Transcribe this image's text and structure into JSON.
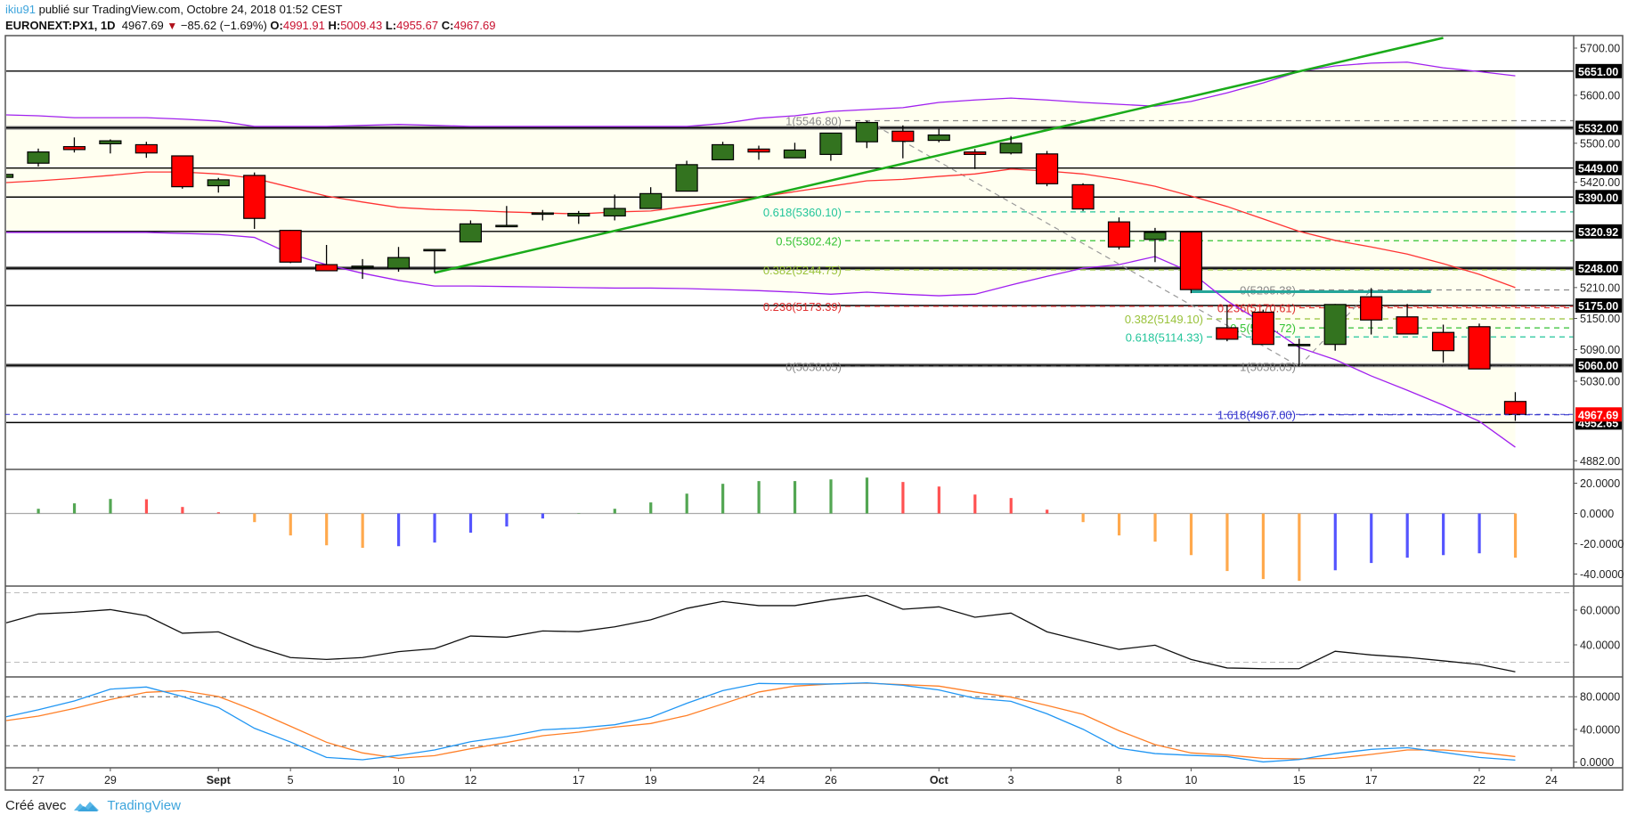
{
  "header": {
    "author": "ikiu91",
    "published": "publié sur TradingView.com, Octobre 24, 2018 01:52 CEST",
    "symbol": "EURONEXT:PX1, 1D",
    "last": "4967.69",
    "direction_icon": "triangle-down",
    "change": "−85.62 (−1.69%)",
    "o_label": "O:",
    "o": "4991.91",
    "h_label": "H:",
    "h": "5009.43",
    "l_label": "L:",
    "l": "4955.67",
    "c_label": "C:",
    "c": "4967.69"
  },
  "footer": {
    "created": "Créé avec",
    "brand": "TradingView",
    "logo_icon": "tradingview-logo"
  },
  "chart_data": {
    "type": "candlestick",
    "price_scale": "log",
    "colors": {
      "up": "#33731f",
      "down": "#ff0000",
      "bb_upper_lower": "#a020f0",
      "bb_basis": "#ff3333",
      "bb_fill": "#fffff0",
      "trendline": "#1aab1a",
      "macd_up_rising": "#53a653",
      "macd_up_falling": "#ff5252",
      "macd_down_falling": "#ffa94d",
      "macd_down_rising": "#5555ff",
      "stoch_k": "#2196f3",
      "stoch_d": "#ff7f27"
    },
    "candles": [
      {
        "d": "Aug 24",
        "o": 5430,
        "h": 5437,
        "l": 5428,
        "c": 5436
      },
      {
        "d": "Aug 27",
        "o": 5459,
        "h": 5489,
        "l": 5452,
        "c": 5482
      },
      {
        "d": "Aug 28",
        "o": 5493,
        "h": 5512,
        "l": 5481,
        "c": 5487
      },
      {
        "d": "Aug 29",
        "o": 5499,
        "h": 5508,
        "l": 5479,
        "c": 5505
      },
      {
        "d": "Aug 30",
        "o": 5497,
        "h": 5503,
        "l": 5470,
        "c": 5480
      },
      {
        "d": "Aug 31",
        "o": 5474,
        "h": 5474,
        "l": 5407,
        "c": 5411
      },
      {
        "d": "Sep 3",
        "o": 5413,
        "h": 5429,
        "l": 5399,
        "c": 5425
      },
      {
        "d": "Sep 4",
        "o": 5434,
        "h": 5440,
        "l": 5326,
        "c": 5347
      },
      {
        "d": "Sep 5",
        "o": 5323,
        "h": 5324,
        "l": 5258,
        "c": 5260
      },
      {
        "d": "Sep 6",
        "o": 5255,
        "h": 5294,
        "l": 5243,
        "c": 5243
      },
      {
        "d": "Sep 7",
        "o": 5250,
        "h": 5266,
        "l": 5227,
        "c": 5252
      },
      {
        "d": "Sep 10",
        "o": 5248,
        "h": 5290,
        "l": 5241,
        "c": 5269
      },
      {
        "d": "Sep 11",
        "o": 5284,
        "h": 5285,
        "l": 5239,
        "c": 5285
      },
      {
        "d": "Sep 12",
        "o": 5300,
        "h": 5343,
        "l": 5300,
        "c": 5336
      },
      {
        "d": "Sep 13",
        "o": 5332,
        "h": 5372,
        "l": 5332,
        "c": 5333
      },
      {
        "d": "Sep 14",
        "o": 5357,
        "h": 5364,
        "l": 5343,
        "c": 5358
      },
      {
        "d": "Sep 17",
        "o": 5352,
        "h": 5362,
        "l": 5336,
        "c": 5357
      },
      {
        "d": "Sep 18",
        "o": 5352,
        "h": 5395,
        "l": 5343,
        "c": 5367
      },
      {
        "d": "Sep 19",
        "o": 5367,
        "h": 5410,
        "l": 5367,
        "c": 5397
      },
      {
        "d": "Sep 20",
        "o": 5402,
        "h": 5464,
        "l": 5402,
        "c": 5456
      },
      {
        "d": "Sep 21",
        "o": 5466,
        "h": 5503,
        "l": 5466,
        "c": 5497
      },
      {
        "d": "Sep 24",
        "o": 5488,
        "h": 5495,
        "l": 5466,
        "c": 5482
      },
      {
        "d": "Sep 25",
        "o": 5470,
        "h": 5501,
        "l": 5470,
        "c": 5486
      },
      {
        "d": "Sep 26",
        "o": 5477,
        "h": 5521,
        "l": 5464,
        "c": 5521
      },
      {
        "d": "Sep 27",
        "o": 5503,
        "h": 5546.8,
        "l": 5490,
        "c": 5543
      },
      {
        "d": "Sep 28",
        "o": 5525,
        "h": 5537,
        "l": 5469,
        "c": 5504
      },
      {
        "d": "Oct 1",
        "o": 5506,
        "h": 5530,
        "l": 5502,
        "c": 5517
      },
      {
        "d": "Oct 2",
        "o": 5482,
        "h": 5488,
        "l": 5447,
        "c": 5477
      },
      {
        "d": "Oct 3",
        "o": 5480,
        "h": 5515,
        "l": 5477,
        "c": 5500
      },
      {
        "d": "Oct 4",
        "o": 5478,
        "h": 5484,
        "l": 5412,
        "c": 5417
      },
      {
        "d": "Oct 5",
        "o": 5415,
        "h": 5418,
        "l": 5362,
        "c": 5366
      },
      {
        "d": "Oct 8",
        "o": 5340,
        "h": 5349,
        "l": 5285,
        "c": 5290
      },
      {
        "d": "Oct 9",
        "o": 5305,
        "h": 5328,
        "l": 5260,
        "c": 5319
      },
      {
        "d": "Oct 10",
        "o": 5320,
        "h": 5320,
        "l": 5199,
        "c": 5206
      },
      {
        "d": "Oct 11",
        "o": 5132,
        "h": 5175,
        "l": 5106,
        "c": 5110
      },
      {
        "d": "Oct 12",
        "o": 5162,
        "h": 5167,
        "l": 5100,
        "c": 5100
      },
      {
        "d": "Oct 15",
        "o": 5099,
        "h": 5111,
        "l": 5058.05,
        "c": 5100
      },
      {
        "d": "Oct 16",
        "o": 5100,
        "h": 5178,
        "l": 5088,
        "c": 5177
      },
      {
        "d": "Oct 17",
        "o": 5192,
        "h": 5209,
        "l": 5119,
        "c": 5147
      },
      {
        "d": "Oct 18",
        "o": 5153,
        "h": 5178,
        "l": 5120,
        "c": 5120
      },
      {
        "d": "Oct 19",
        "o": 5123,
        "h": 5138,
        "l": 5065,
        "c": 5088
      },
      {
        "d": "Oct 22",
        "o": 5134,
        "h": 5140,
        "l": 5053.31,
        "c": 5053.31
      },
      {
        "d": "Oct 23",
        "o": 4991.91,
        "h": 5009.43,
        "l": 4955.67,
        "c": 4967.69
      }
    ],
    "bollinger": {
      "upper": [
        5559,
        5557,
        5553,
        5553,
        5553,
        5550,
        5546,
        5535,
        5535,
        5535,
        5537,
        5539,
        5537,
        5535,
        5535,
        5535,
        5535,
        5535,
        5535,
        5535,
        5541,
        5552,
        5557,
        5566,
        5570,
        5574,
        5585,
        5590,
        5594,
        5590,
        5585,
        5581,
        5577,
        5587,
        5605,
        5626,
        5650,
        5662,
        5668,
        5670,
        5658,
        5650,
        5641
      ],
      "basis": [
        5419,
        5423,
        5428,
        5434,
        5441,
        5441,
        5437,
        5428,
        5410,
        5392,
        5380,
        5369,
        5365,
        5363,
        5360,
        5358,
        5356,
        5360,
        5362,
        5371,
        5380,
        5390,
        5401,
        5412,
        5423,
        5426,
        5432,
        5437,
        5447,
        5443,
        5437,
        5426,
        5412,
        5392,
        5371,
        5346,
        5321,
        5303,
        5290,
        5276,
        5257,
        5236,
        5210
      ],
      "lower": [
        5319,
        5319,
        5319,
        5319,
        5319,
        5317,
        5315,
        5309,
        5276,
        5255,
        5238,
        5224,
        5213,
        5213,
        5212,
        5211,
        5210,
        5209,
        5209,
        5208,
        5206,
        5204,
        5201,
        5197,
        5201,
        5197,
        5194,
        5197,
        5215,
        5232,
        5248,
        5255,
        5271,
        5240,
        5184,
        5141,
        5094,
        5071,
        5040,
        5013,
        4985,
        4955,
        4907
      ]
    },
    "trendline": {
      "from": {
        "d": "Sep 11",
        "price": 5239
      },
      "to": {
        "d": "Oct 19",
        "price": 5722
      }
    },
    "horizontal_levels": [
      {
        "price": 5651,
        "label": "5651.00",
        "thick": false
      },
      {
        "price": 5532,
        "label": "5532.00",
        "thick": true
      },
      {
        "price": 5449,
        "label": "5449.00",
        "thick": false
      },
      {
        "price": 5390,
        "label": "5390.00",
        "thick": false
      },
      {
        "price": 5320.92,
        "label": "5320.92",
        "thick": false
      },
      {
        "price": 5248,
        "label": "5248.00",
        "thick": true
      },
      {
        "price": 5175,
        "label": "5175.00",
        "thick": false
      },
      {
        "price": 5060,
        "label": "5060.00",
        "thick": true
      },
      {
        "price": 4952.65,
        "label": "4952.65",
        "thick": false
      }
    ],
    "last_price_badge": {
      "price": 4967.69,
      "label": "4967.69",
      "color": "#ff0000"
    },
    "price_ticks": [
      {
        "p": 5700,
        "label": "5700.00"
      },
      {
        "p": 5600,
        "label": "5600.00"
      },
      {
        "p": 5500,
        "label": "5500.00"
      },
      {
        "p": 5420,
        "label": "5420.00"
      },
      {
        "p": 5210,
        "label": "5210.00"
      },
      {
        "p": 5150,
        "label": "5150.00"
      },
      {
        "p": 5090,
        "label": "5090.00"
      },
      {
        "p": 5030,
        "label": "5030.00"
      },
      {
        "p": 4882,
        "label": "4882.00"
      }
    ],
    "fib_1": {
      "from": {
        "d": "Sep 27",
        "price": 5546.8
      },
      "to": {
        "d": "Oct 15",
        "price": 5058.05
      },
      "levels": [
        {
          "label": "1(5546.80)",
          "price": 5546.8,
          "color": "#888888"
        },
        {
          "label": "0.618(5360.10)",
          "price": 5360.1,
          "color": "#22c59a"
        },
        {
          "label": "0.5(5302.42)",
          "price": 5302.42,
          "color": "#33c233"
        },
        {
          "label": "0.382(5244.75)",
          "price": 5244.75,
          "color": "#99c23a"
        },
        {
          "label": "0.236(5173.39)",
          "price": 5173.39,
          "color": "#e03030"
        },
        {
          "label": "0(5058.05)",
          "price": 5058.05,
          "color": "#888888"
        }
      ]
    },
    "fib_2": {
      "from": {
        "d": "Oct 15",
        "price": 5058.05
      },
      "to": {
        "d": "Oct 17",
        "price": 5205.38
      },
      "levels": [
        {
          "label": "0(5205.38)",
          "price": 5205.38,
          "color": "#888888"
        },
        {
          "label": "0.236(5170.61)",
          "price": 5170.61,
          "color": "#e03030"
        },
        {
          "label": "0.382(5149.10)",
          "price": 5149.1,
          "color": "#99c23a"
        },
        {
          "label": "0.5(5131.72)",
          "price": 5131.72,
          "color": "#33c233"
        },
        {
          "label": "0.618(5114.33)",
          "price": 5114.33,
          "color": "#22c59a"
        },
        {
          "label": "1(5058.05)",
          "price": 5058.05,
          "color": "#888888"
        },
        {
          "label": "1.618(4967.00)",
          "price": 4967.0,
          "color": "#3333cc"
        }
      ],
      "highlight_line": {
        "price": 5205.38,
        "from": "Oct 10",
        "to": "Oct 17",
        "color": "#26a69a"
      }
    },
    "macd_histogram": {
      "ticks": [
        {
          "v": 20,
          "label": "20.0000"
        },
        {
          "v": 0,
          "label": "0.0000"
        },
        {
          "v": -20,
          "label": "-20.0000"
        },
        {
          "v": -40,
          "label": "-40.0000"
        }
      ],
      "values": [
        null,
        3.1,
        6.7,
        9.6,
        9.4,
        4.3,
        0.8,
        -5.7,
        -14.5,
        -21,
        -22.7,
        -21.6,
        -19.2,
        -12.7,
        -8.6,
        -3.3,
        0.3,
        3.1,
        7.3,
        13.1,
        19.6,
        21.4,
        21.4,
        22.5,
        23.7,
        20.8,
        17.8,
        12.5,
        10.2,
        2.5,
        -5.7,
        -14.5,
        -18.6,
        -27.5,
        -38,
        -43.3,
        -44.5,
        -37.5,
        -32.7,
        -29.2,
        -27.5,
        -26.3,
        -29.2
      ]
    },
    "rsi": {
      "ticks": [
        {
          "v": 60,
          "label": "60.0000"
        },
        {
          "v": 40,
          "label": "40.0000"
        }
      ],
      "bands": [
        70,
        30
      ],
      "values": [
        52.7,
        57.8,
        58.8,
        60.3,
        56.8,
        46.7,
        47.5,
        39.1,
        32.7,
        31.6,
        32.7,
        36.1,
        37.8,
        45.1,
        44.4,
        48.0,
        47.6,
        50.4,
        54.4,
        61.0,
        65.0,
        62.6,
        62.6,
        66.0,
        68.5,
        60.5,
        61.9,
        55.9,
        58.3,
        47.5,
        42.4,
        37.4,
        39.8,
        31.6,
        26.7,
        26.3,
        26.3,
        36.3,
        34.2,
        32.8,
        30.8,
        28.7,
        24.5
      ]
    },
    "stochastic": {
      "ticks": [
        {
          "v": 80,
          "label": "80.0000"
        },
        {
          "v": 40,
          "label": "40.0000"
        },
        {
          "v": 0,
          "label": "0.0000"
        }
      ],
      "bands": [
        80,
        20
      ],
      "k": [
        55.5,
        64,
        74.8,
        89.3,
        91.9,
        80.3,
        66.8,
        41.4,
        24.6,
        5.7,
        2.8,
        8.2,
        14.8,
        24.9,
        31.2,
        39.5,
        41.7,
        45.7,
        54.8,
        71.9,
        87.5,
        96.3,
        95.6,
        95.6,
        97,
        94,
        88.3,
        78.1,
        74.4,
        59.1,
        40.2,
        16.9,
        10.4,
        8.2,
        6.7,
        0.2,
        3.1,
        10.4,
        15.5,
        17.7,
        11.9,
        5.7,
        2.4
      ],
      "d": [
        50.8,
        56.3,
        65.7,
        76.6,
        85.4,
        87.5,
        80.3,
        63.2,
        43.9,
        24.3,
        11.2,
        4.6,
        7.9,
        16.3,
        23.9,
        32.3,
        36.6,
        42.8,
        47.2,
        57,
        71.2,
        85.8,
        93,
        95.6,
        96.6,
        94.8,
        93,
        85.8,
        79.5,
        69.4,
        58.4,
        38.4,
        21.4,
        11.2,
        8.6,
        4.6,
        3.9,
        4.6,
        9.4,
        14.8,
        14.8,
        11.9,
        6.7
      ]
    },
    "x_ticks": [
      {
        "label": "27",
        "d": "Aug 27",
        "bold": false
      },
      {
        "label": "29",
        "d": "Aug 29",
        "bold": false
      },
      {
        "label": "Sept",
        "d": "Sep 3",
        "bold": true
      },
      {
        "label": "5",
        "d": "Sep 5",
        "bold": false
      },
      {
        "label": "10",
        "d": "Sep 10",
        "bold": false
      },
      {
        "label": "12",
        "d": "Sep 12",
        "bold": false
      },
      {
        "label": "17",
        "d": "Sep 17",
        "bold": false
      },
      {
        "label": "19",
        "d": "Sep 19",
        "bold": false
      },
      {
        "label": "24",
        "d": "Sep 24",
        "bold": false
      },
      {
        "label": "26",
        "d": "Sep 26",
        "bold": false
      },
      {
        "label": "Oct",
        "d": "Oct 1",
        "bold": true
      },
      {
        "label": "3",
        "d": "Oct 3",
        "bold": false
      },
      {
        "label": "8",
        "d": "Oct 8",
        "bold": false
      },
      {
        "label": "10",
        "d": "Oct 10",
        "bold": false
      },
      {
        "label": "15",
        "d": "Oct 15",
        "bold": false
      },
      {
        "label": "17",
        "d": "Oct 17",
        "bold": false
      },
      {
        "label": "22",
        "d": "Oct 22",
        "bold": false
      },
      {
        "label": "24",
        "d": "Oct 24",
        "bold": false
      }
    ]
  }
}
